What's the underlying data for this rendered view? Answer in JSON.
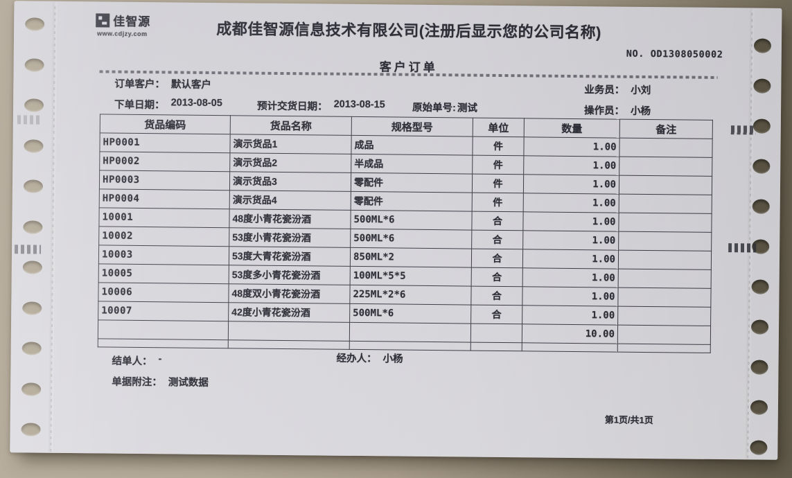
{
  "header": {
    "logo_text": "佳智源",
    "logo_url": "www.cdjzy.com",
    "company_title": "成都佳智源信息技术有限公司(注册后显示您的公司名称)",
    "order_no": "NO. OD1308050002",
    "doc_title": "客户订单"
  },
  "info": {
    "customer_label": "订单客户：",
    "customer_value": "默认客户",
    "salesman_label": "业务员：",
    "salesman_value": "小刘",
    "order_date_label": "下单日期：",
    "order_date_value": "2013-08-05",
    "delivery_date_label": "预计交货日期：",
    "delivery_date_value": "2013-08-15",
    "original_no_label": "原始单号:",
    "original_no_value": "测试",
    "operator_label": "操作员：",
    "operator_value": "小杨"
  },
  "table": {
    "headers": [
      "货品编码",
      "货品名称",
      "规格型号",
      "单位",
      "数量",
      "备注"
    ],
    "rows": [
      [
        "HP0001",
        "演示货品1",
        "成品",
        "件",
        "1.00",
        ""
      ],
      [
        "HP0002",
        "演示货品2",
        "半成品",
        "件",
        "1.00",
        ""
      ],
      [
        "HP0003",
        "演示货品3",
        "零配件",
        "件",
        "1.00",
        ""
      ],
      [
        "HP0004",
        "演示货品4",
        "零配件",
        "件",
        "1.00",
        ""
      ],
      [
        "10001",
        "48度小青花瓷汾酒",
        "500ML*6",
        "合",
        "1.00",
        ""
      ],
      [
        "10002",
        "53度小青花瓷汾酒",
        "500ML*6",
        "合",
        "1.00",
        ""
      ],
      [
        "10003",
        "53度大青花瓷汾酒",
        "850ML*2",
        "合",
        "1.00",
        ""
      ],
      [
        "10005",
        "53度多小青花瓷汾酒",
        "100ML*5*5",
        "合",
        "1.00",
        ""
      ],
      [
        "10006",
        "48度双小青花瓷汾酒",
        "225ML*2*6",
        "合",
        "1.00",
        ""
      ],
      [
        "10007",
        "42度小青花瓷汾酒",
        "500ML*6",
        "合",
        "1.00",
        ""
      ]
    ],
    "total_quantity": "10.00"
  },
  "footer": {
    "closer_label": "结单人：",
    "closer_value": "-",
    "handler_label": "经办人：",
    "handler_value": "小杨",
    "note_label": "单据附注：",
    "note_value": "测试数据",
    "page": "第1页/共1页"
  }
}
